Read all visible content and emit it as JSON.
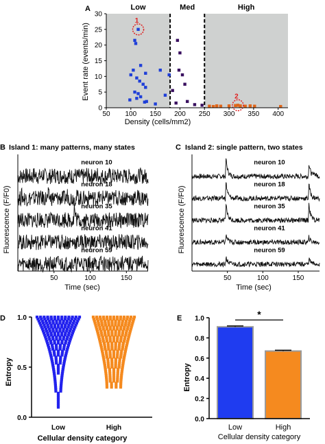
{
  "chart_data": [
    {
      "panel": "A",
      "type": "scatter",
      "xlabel": "Density (cells/mm2)",
      "ylabel": "Event rate (events/min)",
      "xlim": [
        50,
        420
      ],
      "ylim": [
        0,
        30
      ],
      "xticks": [
        "50",
        "100",
        "150",
        "200",
        "250",
        "300",
        "350",
        "400"
      ],
      "yticks": [
        "0",
        "5",
        "10",
        "15",
        "20",
        "25",
        "30"
      ],
      "zones": [
        "Low",
        "Med",
        "High"
      ],
      "thresholds": [
        180,
        250
      ],
      "callouts": [
        {
          "label": "1",
          "x": 115,
          "y": 25
        },
        {
          "label": "2",
          "x": 318,
          "y": 0.8
        }
      ],
      "colors": {
        "low": "#1f3fd8",
        "med": "#3a1160",
        "high": "#e0661a",
        "shade": "#cfd1d0",
        "callout": "#e02020"
      },
      "series": [
        {
          "group": "low",
          "x": [
            108,
            115,
            110,
            105,
            120,
            130,
            100,
            112,
            118,
            125,
            130,
            108,
            115,
            120,
            112,
            98,
            132,
            160,
            128,
            170,
            150,
            178
          ],
          "y": [
            21.5,
            25,
            20.5,
            12,
            13.5,
            11,
            10.5,
            9.5,
            8.5,
            7.5,
            6.5,
            5,
            4.5,
            3.5,
            3,
            2.5,
            2,
            12,
            1.8,
            4,
            1.2,
            10.5
          ]
        },
        {
          "group": "med",
          "x": [
            195,
            200,
            198,
            205,
            210,
            185,
            192,
            230,
            245,
            215
          ],
          "y": [
            21.5,
            17.5,
            12,
            10.5,
            7.5,
            5.5,
            1.5,
            1,
            0.8,
            2
          ]
        },
        {
          "group": "high",
          "x": [
            260,
            268,
            275,
            283,
            300,
            313,
            318,
            323,
            333,
            343,
            352,
            405
          ],
          "y": [
            0.5,
            0.4,
            0.6,
            0.5,
            0.6,
            0.7,
            0.8,
            0.6,
            0.5,
            0.6,
            0.5,
            0.4
          ]
        }
      ]
    },
    {
      "panel": "B",
      "type": "line",
      "title": "Island 1: many patterns, many states",
      "xlabel": "Time (sec)",
      "ylabel": "Fluorescence (F/F0)",
      "xlim": [
        0,
        180
      ],
      "xticks": [
        "50",
        "100",
        "150"
      ],
      "neurons": [
        {
          "name": "neuron 10",
          "peaks": [
            [
              8,
              0.6
            ],
            [
              22,
              0.5
            ],
            [
              35,
              0.45
            ],
            [
              50,
              0.45
            ],
            [
              62,
              0.6
            ],
            [
              78,
              0.5
            ],
            [
              95,
              0.4
            ],
            [
              110,
              0.35
            ],
            [
              125,
              0.35
            ],
            [
              140,
              0.35
            ],
            [
              155,
              0.4
            ],
            [
              168,
              0.5
            ]
          ]
        },
        {
          "name": "neuron 18",
          "peaks": [
            [
              5,
              0.6
            ],
            [
              25,
              0.7
            ],
            [
              42,
              0.55
            ],
            [
              68,
              0.75
            ],
            [
              82,
              0.5
            ],
            [
              100,
              0.6
            ],
            [
              118,
              0.4
            ],
            [
              135,
              0.4
            ],
            [
              150,
              0.5
            ],
            [
              165,
              0.4
            ]
          ]
        },
        {
          "name": "neuron 35",
          "peaks": [
            [
              30,
              0.3
            ],
            [
              55,
              0.35
            ],
            [
              65,
              0.55
            ],
            [
              78,
              2.2
            ]
          ]
        },
        {
          "name": "neuron 41",
          "peaks": [
            [
              30,
              0.3
            ],
            [
              55,
              0.3
            ],
            [
              92,
              0.45
            ],
            [
              140,
              0.4
            ]
          ]
        },
        {
          "name": "neuron 59",
          "peaks": [
            [
              10,
              0.3
            ],
            [
              25,
              0.3
            ],
            [
              40,
              0.35
            ],
            [
              55,
              0.4
            ],
            [
              70,
              0.35
            ],
            [
              88,
              0.3
            ],
            [
              100,
              0.3
            ],
            [
              115,
              0.35
            ],
            [
              130,
              0.3
            ],
            [
              145,
              0.35
            ],
            [
              160,
              0.3
            ],
            [
              172,
              0.3
            ]
          ]
        }
      ]
    },
    {
      "panel": "C",
      "type": "line",
      "title": "Island 2: single pattern, two states",
      "xlabel": "Time (sec)",
      "ylabel": "Fluorescence (F/F0)",
      "xlim": [
        0,
        180
      ],
      "xticks": [
        "50",
        "100",
        "150"
      ],
      "neurons": [
        {
          "name": "neuron 10",
          "peaks": [
            [
              48,
              2.2
            ],
            [
              165,
              1.6
            ],
            [
              172,
              0.5
            ]
          ]
        },
        {
          "name": "neuron 18",
          "peaks": [
            [
              48,
              2.0
            ],
            [
              165,
              1.8
            ]
          ]
        },
        {
          "name": "neuron 35",
          "peaks": [
            [
              48,
              2.0
            ],
            [
              165,
              2.0
            ]
          ]
        },
        {
          "name": "neuron 41",
          "peaks": [
            [
              48,
              0.9
            ],
            [
              165,
              0.6
            ]
          ]
        },
        {
          "name": "neuron 59",
          "peaks": [
            [
              48,
              0.9
            ],
            [
              165,
              0.7
            ]
          ]
        }
      ]
    },
    {
      "panel": "D",
      "type": "scatter",
      "xlabel": "Cellular density category",
      "ylabel": "Entropy",
      "ylim": [
        0,
        1.0
      ],
      "yticks": [
        "0.0",
        "0.5",
        "1.0"
      ],
      "categories": [
        "Low",
        "High"
      ],
      "colors": {
        "Low": "#2222ee",
        "High": "#f58a1f"
      },
      "series": [
        {
          "name": "Low",
          "min": 0.1,
          "max": 1.0
        },
        {
          "name": "High",
          "min": 0.3,
          "max": 1.0
        }
      ]
    },
    {
      "panel": "E",
      "type": "bar",
      "xlabel": "Cellular density category",
      "ylabel": "Entropy",
      "ylim": [
        0,
        1.0
      ],
      "yticks": [
        "0.0",
        "0.2",
        "0.4",
        "0.6",
        "0.8",
        "1.0"
      ],
      "categories": [
        "Low",
        "High"
      ],
      "values": [
        0.91,
        0.67
      ],
      "errors": [
        0.008,
        0.008
      ],
      "colors": [
        "#1f3cf0",
        "#f58a1f"
      ],
      "significance": "*"
    }
  ]
}
